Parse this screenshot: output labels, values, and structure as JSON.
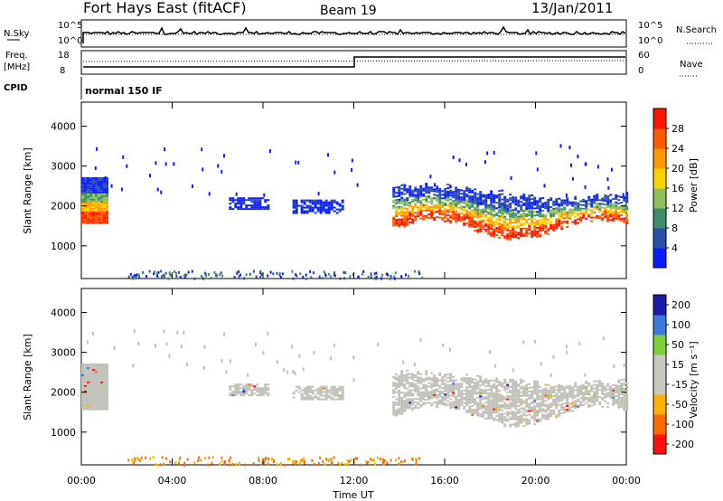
{
  "header": {
    "station": "Fort Hays East (fitACF)",
    "beam": "Beam 19",
    "date": "13/Jan/2011"
  },
  "panels": {
    "nsky": {
      "left_label": "N.Sky",
      "right_label": "N.Search",
      "tick_top": "10^5",
      "tick_bottom": "10^0",
      "right_tick_top": "10^5",
      "right_tick_bottom": "10^0"
    },
    "freq": {
      "label_line1": "Freq.",
      "label_line2": "[MHz]",
      "right_label": "Nave",
      "ticks_left": [
        "18",
        "8"
      ],
      "ticks_right": [
        "60",
        "0"
      ]
    },
    "cpid": {
      "label": "CPID",
      "program": "normal 150 IF"
    }
  },
  "colors": {
    "power": [
      "#0a1cff",
      "#2b4fa6",
      "#3e8c6a",
      "#8fbf5a",
      "#ffd200",
      "#ff9a00",
      "#ff5a00",
      "#ff1400"
    ],
    "velocity": [
      "#ff1010",
      "#ff6a00",
      "#ffb000",
      "#c8c8c0",
      "#c8c8c0",
      "#7fcf3a",
      "#3b7bd9",
      "#1a1aa8"
    ],
    "ground_scatter": "#c0c0b8"
  },
  "chart_data": [
    {
      "type": "heatmap",
      "name": "power",
      "xlabel": "",
      "ylabel": "Slant Range [km]",
      "xlim": [
        0,
        24
      ],
      "ylim": [
        180,
        4600
      ],
      "yticks": [
        1000,
        2000,
        3000,
        4000
      ],
      "colorbar": {
        "label": "Power [dB]",
        "ticks": [
          "4",
          "8",
          "12",
          "16",
          "20",
          "24",
          "28"
        ],
        "range": [
          0,
          32
        ]
      },
      "bands": [
        {
          "t0": 0.0,
          "t1": 1.1,
          "r0": 1550,
          "r1": 2700,
          "level": 20
        },
        {
          "t0": 6.5,
          "t1": 8.2,
          "r0": 1900,
          "r1": 2200,
          "level": 4
        },
        {
          "t0": 9.3,
          "t1": 11.5,
          "r0": 1800,
          "r1": 2150,
          "level": 4
        },
        {
          "t0": 13.7,
          "t1": 24.0,
          "r0": 1400,
          "r1": 2400,
          "level": 20
        }
      ]
    },
    {
      "type": "heatmap",
      "name": "velocity",
      "xlabel": "Time UT",
      "ylabel": "Slant Range [km]",
      "xlim": [
        0,
        24
      ],
      "ylim": [
        180,
        4600
      ],
      "xticks": [
        "00:00",
        "04:00",
        "08:00",
        "12:00",
        "16:00",
        "20:00",
        "00:00"
      ],
      "yticks": [
        1000,
        2000,
        3000,
        4000
      ],
      "colorbar": {
        "label": "Velocity [m s⁻¹]",
        "ticks": [
          "-200",
          "-100",
          "-50",
          "-15",
          "15",
          "50",
          "100",
          "200"
        ]
      },
      "bands": [
        {
          "t0": 0.0,
          "t1": 1.1,
          "r0": 1550,
          "r1": 2700,
          "level": 0
        },
        {
          "t0": 6.5,
          "t1": 8.2,
          "r0": 1900,
          "r1": 2200,
          "level": 0
        },
        {
          "t0": 9.3,
          "t1": 11.5,
          "r0": 1800,
          "r1": 2150,
          "level": 0
        },
        {
          "t0": 13.7,
          "t1": 24.0,
          "r0": 1400,
          "r1": 2500,
          "level": 0
        }
      ]
    }
  ]
}
